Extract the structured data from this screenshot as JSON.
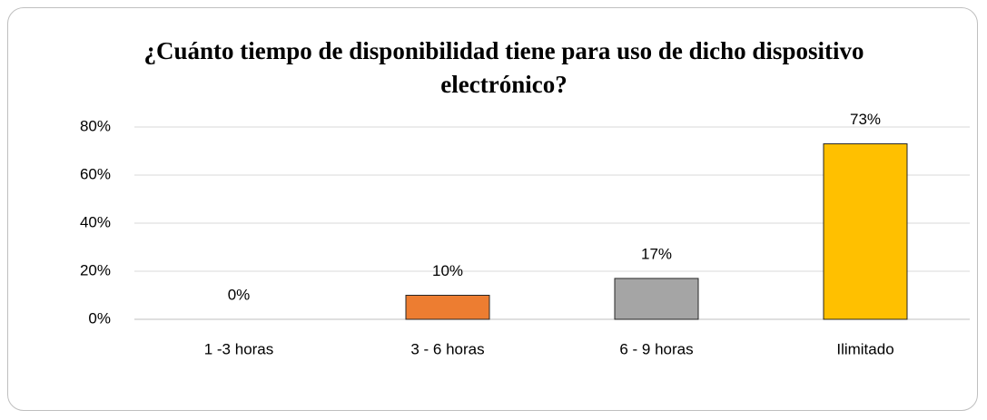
{
  "chart_data": {
    "type": "bar",
    "title": "¿Cuánto tiempo de disponibilidad tiene para uso de dicho dispositivo electrónico?",
    "categories": [
      "1 -3 horas",
      "3 - 6 horas",
      "6 - 9 horas",
      "Ilimitado"
    ],
    "values": [
      0,
      10,
      17,
      73
    ],
    "value_labels": [
      "0%",
      "10%",
      "17%",
      "73%"
    ],
    "colors": [
      "#4472c4",
      "#ed7d31",
      "#a5a5a5",
      "#ffc000"
    ],
    "ylim": [
      0,
      80
    ],
    "yticks": [
      {
        "value": 0,
        "label": "0%"
      },
      {
        "value": 20,
        "label": "20%"
      },
      {
        "value": 40,
        "label": "40%"
      },
      {
        "value": 60,
        "label": "60%"
      },
      {
        "value": 80,
        "label": "80%"
      }
    ],
    "grid": true
  }
}
